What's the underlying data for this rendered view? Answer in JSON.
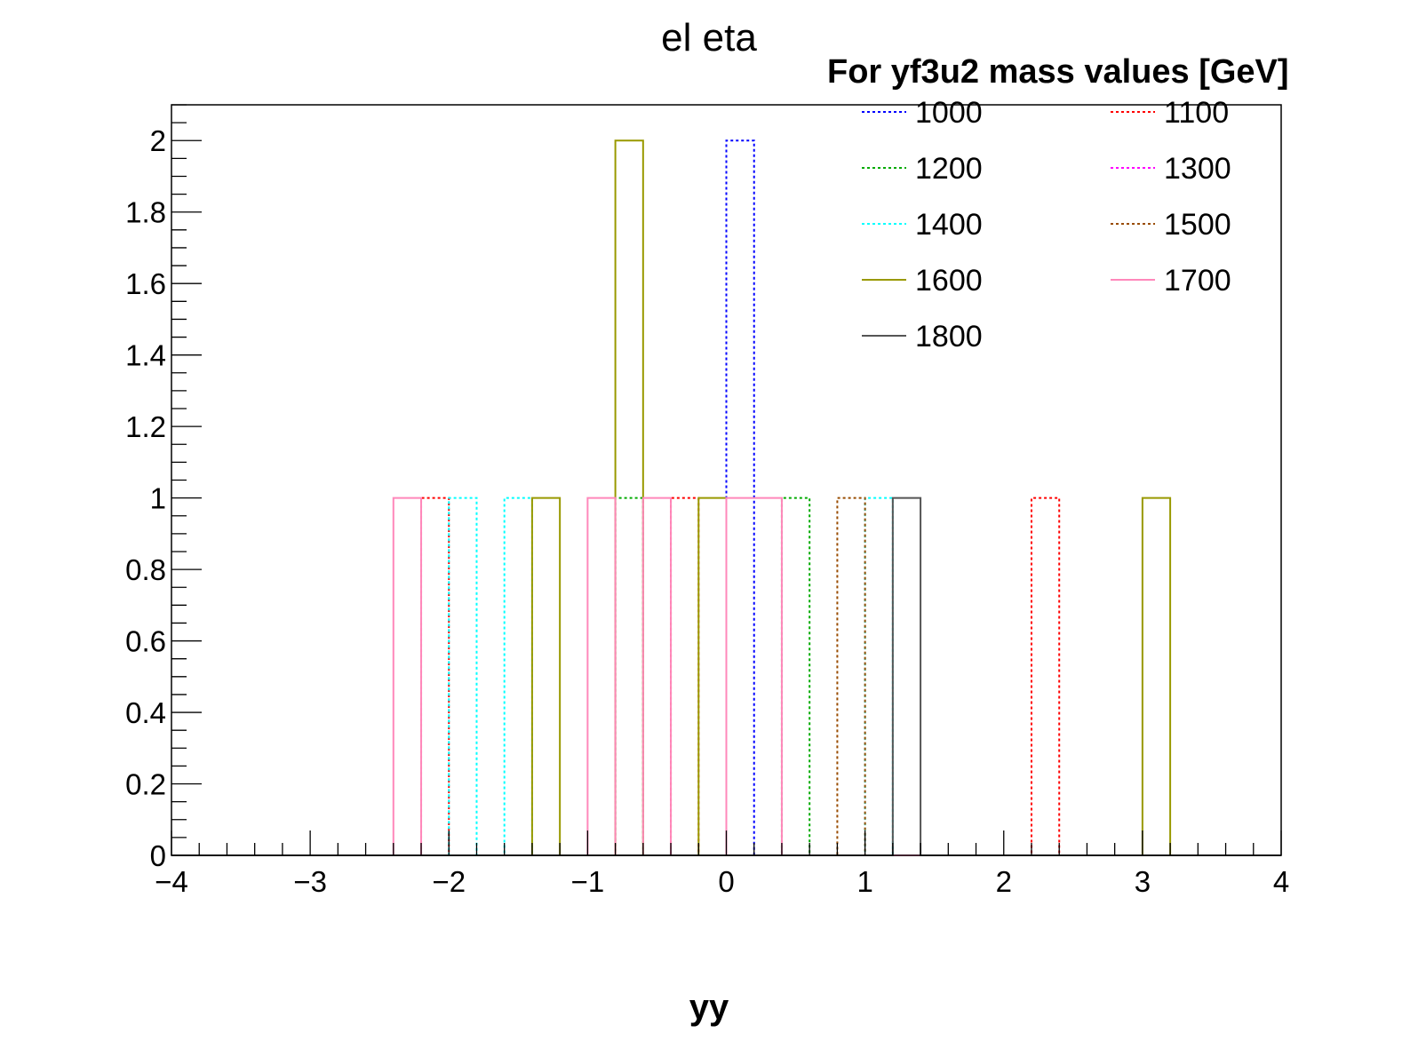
{
  "chart_data": {
    "type": "histogram",
    "title": "el eta",
    "xlabel": "yy",
    "ylabel": "",
    "xlim": [
      -4,
      4
    ],
    "ylim": [
      0,
      2.1
    ],
    "bin_width": 0.2,
    "grid": false,
    "x_ticks": [
      -4,
      -3,
      -2,
      -1,
      0,
      1,
      2,
      3,
      4
    ],
    "x_tick_labels": [
      "−4",
      "−3",
      "−2",
      "−1",
      "0",
      "1",
      "2",
      "3",
      "4"
    ],
    "y_ticks": [
      0,
      0.2,
      0.4,
      0.6,
      0.8,
      1,
      1.2,
      1.4,
      1.6,
      1.8,
      2
    ],
    "y_tick_labels": [
      "0",
      "0.2",
      "0.4",
      "0.6",
      "0.8",
      "1",
      "1.2",
      "1.4",
      "1.6",
      "1.8",
      "2"
    ],
    "legend": {
      "header": "For yf3u2 mass values [GeV]",
      "placement": "top-right",
      "columns": 2
    },
    "series": [
      {
        "name": "1000",
        "color": "#0000ff",
        "style": "dotted",
        "bins": [
          {
            "low": 0.0,
            "value": 2
          }
        ]
      },
      {
        "name": "1100",
        "color": "#ff0000",
        "style": "dotted",
        "bins": [
          {
            "low": -2.2,
            "value": 1
          },
          {
            "low": -0.4,
            "value": 1
          },
          {
            "low": 2.2,
            "value": 1
          }
        ]
      },
      {
        "name": "1200",
        "color": "#00aa00",
        "style": "dotted",
        "bins": [
          {
            "low": -0.8,
            "value": 1
          },
          {
            "low": 0.4,
            "value": 1
          }
        ]
      },
      {
        "name": "1300",
        "color": "#ff00ff",
        "style": "dotted",
        "bins": []
      },
      {
        "name": "1400",
        "color": "#00ffff",
        "style": "dotted",
        "bins": [
          {
            "low": -2.0,
            "value": 1
          },
          {
            "low": -1.6,
            "value": 1
          },
          {
            "low": 1.0,
            "value": 1
          }
        ]
      },
      {
        "name": "1500",
        "color": "#994c00",
        "style": "dotted",
        "bins": [
          {
            "low": 0.8,
            "value": 1
          }
        ]
      },
      {
        "name": "1600",
        "color": "#999900",
        "style": "solid",
        "bins": [
          {
            "low": -1.4,
            "value": 1
          },
          {
            "low": -0.8,
            "value": 2
          },
          {
            "low": -0.2,
            "value": 1
          },
          {
            "low": 3.0,
            "value": 1
          }
        ]
      },
      {
        "name": "1700",
        "color": "#ff88bb",
        "style": "solid",
        "bins": [
          {
            "low": -2.4,
            "value": 1
          },
          {
            "low": -1.0,
            "value": 1
          },
          {
            "low": -0.6,
            "value": 1
          },
          {
            "low": 0.0,
            "value": 1
          },
          {
            "low": 0.2,
            "value": 1
          }
        ]
      },
      {
        "name": "1800",
        "color": "#555555",
        "style": "solid",
        "bins": [
          {
            "low": 1.2,
            "value": 1
          }
        ]
      }
    ]
  }
}
